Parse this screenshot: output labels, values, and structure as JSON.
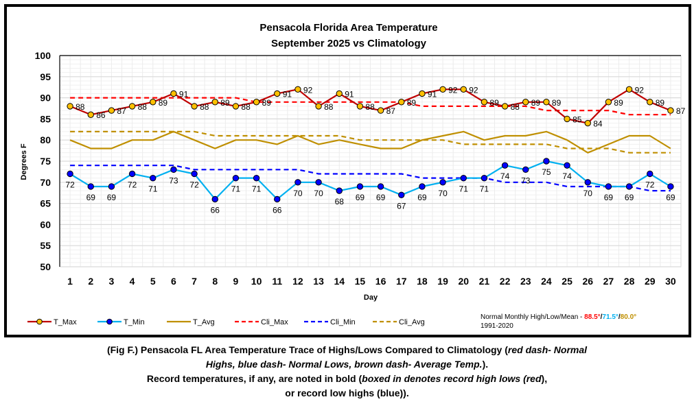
{
  "chart_data": {
    "type": "line",
    "title": [
      "Pensacola Florida Area Temperature",
      "September 2025 vs Climatology"
    ],
    "xlabel": "Day",
    "ylabel": "Degrees F",
    "ylim": [
      50,
      100
    ],
    "yticks": [
      50,
      55,
      60,
      65,
      70,
      75,
      80,
      85,
      90,
      95,
      100
    ],
    "grid": true,
    "legend_position": "bottom",
    "categories": [
      1,
      2,
      3,
      4,
      5,
      6,
      7,
      8,
      9,
      10,
      11,
      12,
      13,
      14,
      15,
      16,
      17,
      18,
      19,
      20,
      21,
      22,
      23,
      24,
      25,
      26,
      27,
      28,
      29,
      30
    ],
    "series": [
      {
        "name": "T_Max",
        "color": "#c00000",
        "marker_fill": "#ffc000",
        "marker_edge": "#000000",
        "style": "solid",
        "markers": true,
        "labels": true,
        "values": [
          88,
          86,
          87,
          88,
          89,
          91,
          88,
          89,
          88,
          89,
          91,
          92,
          88,
          91,
          88,
          87,
          89,
          91,
          92,
          92,
          89,
          88,
          89,
          89,
          85,
          84,
          89,
          92,
          89,
          87
        ]
      },
      {
        "name": "T_Min",
        "color": "#00b0f0",
        "marker_fill": "#0000ff",
        "marker_edge": "#000000",
        "style": "solid",
        "markers": true,
        "labels": true,
        "values": [
          72,
          69,
          69,
          72,
          71,
          73,
          72,
          66,
          71,
          71,
          66,
          70,
          70,
          68,
          69,
          69,
          67,
          69,
          70,
          71,
          71,
          74,
          73,
          75,
          74,
          70,
          69,
          69,
          72,
          69
        ]
      },
      {
        "name": "T_Avg",
        "color": "#bf8f00",
        "style": "solid",
        "markers": false,
        "labels": false,
        "values": [
          80,
          78,
          78,
          80,
          80,
          82,
          80,
          78,
          80,
          80,
          79,
          81,
          79,
          80,
          79,
          78,
          78,
          80,
          81,
          82,
          80,
          81,
          81,
          82,
          80,
          77,
          79,
          81,
          81,
          78
        ]
      },
      {
        "name": "Cli_Max",
        "color": "#ff0000",
        "style": "dashed",
        "markers": false,
        "labels": false,
        "values": [
          90,
          90,
          90,
          90,
          90,
          90,
          90,
          90,
          90,
          89,
          89,
          89,
          89,
          89,
          89,
          89,
          89,
          88,
          88,
          88,
          88,
          88,
          88,
          87,
          87,
          87,
          87,
          86,
          86,
          86
        ]
      },
      {
        "name": "Cli_Min",
        "color": "#0000ff",
        "style": "dashed",
        "markers": false,
        "labels": false,
        "values": [
          74,
          74,
          74,
          74,
          74,
          74,
          73,
          73,
          73,
          73,
          73,
          73,
          72,
          72,
          72,
          72,
          72,
          71,
          71,
          71,
          71,
          70,
          70,
          70,
          69,
          69,
          69,
          69,
          68,
          68
        ]
      },
      {
        "name": "Cli_Avg",
        "color": "#bf8f00",
        "style": "dashed",
        "markers": false,
        "labels": false,
        "values": [
          82,
          82,
          82,
          82,
          82,
          82,
          82,
          81,
          81,
          81,
          81,
          81,
          81,
          81,
          80,
          80,
          80,
          80,
          80,
          79,
          79,
          79,
          79,
          79,
          78,
          78,
          78,
          77,
          77,
          77
        ]
      }
    ],
    "annotation": {
      "prefix": "Normal Monthly High/Low/Mean - ",
      "high": "88.5°",
      "high_color": "#ff0000",
      "low": "71.5°",
      "low_color": "#00b0f0",
      "mean": "80.0°",
      "mean_color": "#bf8f00",
      "sep": "/",
      "period": "1991-2020"
    }
  },
  "caption": {
    "line1_a": "(Fig F.) Pensacola FL Area Temperature Trace of Highs/Lows Compared to Climatology (",
    "line1_b": "red dash- Normal",
    "line2_a": "Highs, blue dash- Normal Lows, brown dash- Average Temp.",
    "line2_b": ").",
    "line3_a": "Record temperatures, if any, are noted in bold (",
    "line3_b": "boxed in denotes record high lows (red",
    "line3_c": "),",
    "line4": "or record low highs (blue))."
  }
}
